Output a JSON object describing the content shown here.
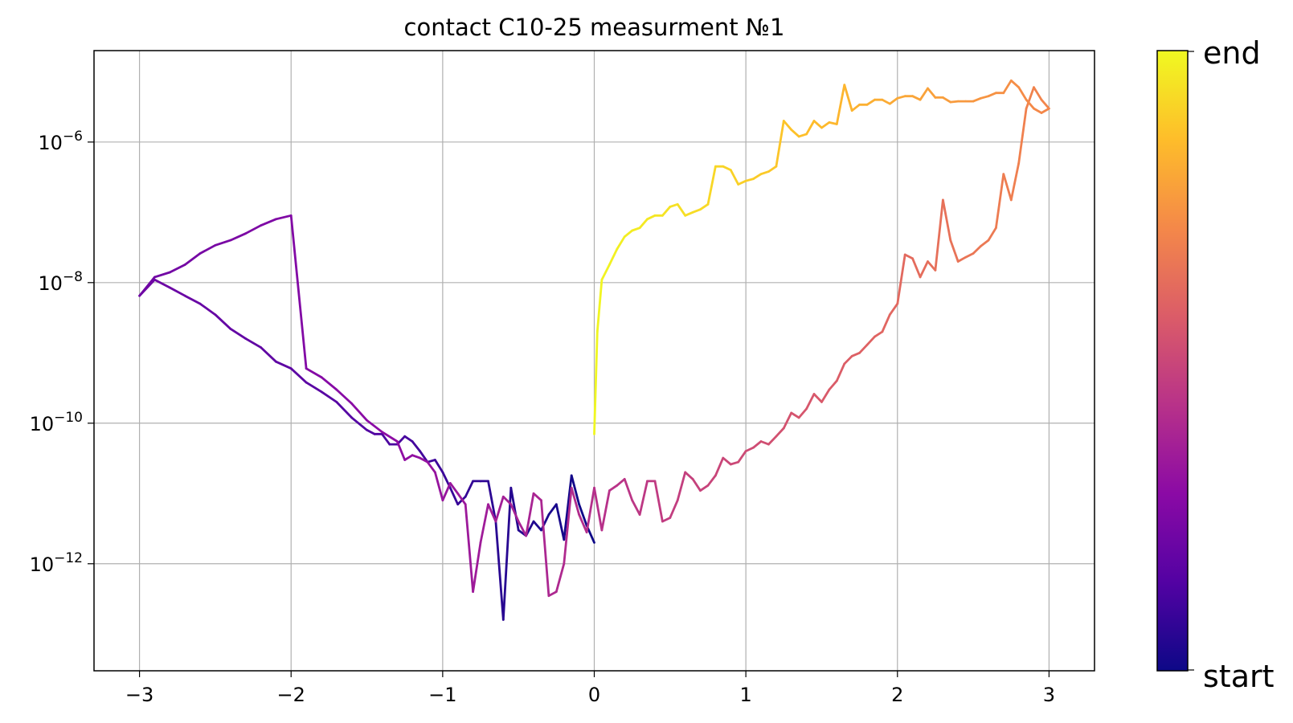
{
  "chart_data": {
    "type": "line",
    "title": "contact C10-25 measurment №1",
    "xlabel": "",
    "ylabel": "",
    "xlim": [
      -3.3,
      3.3
    ],
    "ylim": [
      3e-14,
      2e-05
    ],
    "y_scale": "log",
    "grid": true,
    "x_ticks": [
      -3,
      -2,
      -1,
      0,
      1,
      2,
      3
    ],
    "x_tick_labels": [
      "−3",
      "−2",
      "−1",
      "0",
      "1",
      "2",
      "3"
    ],
    "y_ticks": [
      {
        "value": 1e-12,
        "base": "10",
        "exp": "−12"
      },
      {
        "value": 1e-10,
        "base": "10",
        "exp": "−10"
      },
      {
        "value": 1e-08,
        "base": "10",
        "exp": "−8"
      },
      {
        "value": 1e-06,
        "base": "10",
        "exp": "−6"
      }
    ],
    "colormap": "plasma",
    "colorbar": {
      "start_label": "start",
      "end_label": "end"
    },
    "colormap_stops": [
      "#0d0887",
      "#5302a3",
      "#8b0aa5",
      "#b83289",
      "#db5c68",
      "#f48849",
      "#febd2a",
      "#f0f921"
    ],
    "series": [
      {
        "values": [
          [
            0,
            2e-12
          ],
          [
            -0.05,
            3.5e-12
          ],
          [
            -0.1,
            7e-12
          ],
          [
            -0.15,
            1.8e-11
          ],
          [
            -0.2,
            2.2e-12
          ],
          [
            -0.25,
            7e-12
          ],
          [
            -0.3,
            5e-12
          ],
          [
            -0.35,
            3e-12
          ],
          [
            -0.4,
            4e-12
          ],
          [
            -0.45,
            2.5e-12
          ],
          [
            -0.5,
            3e-12
          ],
          [
            -0.55,
            1.2e-11
          ],
          [
            -0.6,
            1.6e-13
          ],
          [
            -0.65,
            4e-12
          ],
          [
            -0.7,
            1.5e-11
          ],
          [
            -0.75,
            1.5e-11
          ],
          [
            -0.8,
            1.5e-11
          ],
          [
            -0.85,
            9e-12
          ],
          [
            -0.9,
            7e-12
          ],
          [
            -0.95,
            1.2e-11
          ],
          [
            -1.0,
            2e-11
          ],
          [
            -1.05,
            3e-11
          ],
          [
            -1.1,
            2.8e-11
          ],
          [
            -1.15,
            4e-11
          ],
          [
            -1.2,
            5.5e-11
          ],
          [
            -1.25,
            6.5e-11
          ],
          [
            -1.3,
            5e-11
          ],
          [
            -1.35,
            5e-11
          ],
          [
            -1.4,
            7e-11
          ],
          [
            -1.45,
            7e-11
          ],
          [
            -1.5,
            8e-11
          ],
          [
            -1.6,
            1.2e-10
          ],
          [
            -1.7,
            2e-10
          ],
          [
            -1.8,
            2.8e-10
          ],
          [
            -1.9,
            3.8e-10
          ],
          [
            -2.0,
            6e-10
          ],
          [
            -2.1,
            7.5e-10
          ],
          [
            -2.2,
            1.2e-09
          ],
          [
            -2.3,
            1.6e-09
          ],
          [
            -2.4,
            2.2e-09
          ],
          [
            -2.5,
            3.5e-09
          ],
          [
            -2.6,
            5e-09
          ],
          [
            -2.7,
            6.5e-09
          ],
          [
            -2.8,
            8.5e-09
          ],
          [
            -2.9,
            1.1e-08
          ],
          [
            -3.0,
            6.5e-09
          ],
          [
            -2.9,
            1.2e-08
          ],
          [
            -2.8,
            1.4e-08
          ],
          [
            -2.7,
            1.8e-08
          ],
          [
            -2.6,
            2.6e-08
          ],
          [
            -2.5,
            3.4e-08
          ],
          [
            -2.4,
            4e-08
          ],
          [
            -2.3,
            5e-08
          ],
          [
            -2.2,
            6.5e-08
          ],
          [
            -2.1,
            8e-08
          ],
          [
            -2.0,
            9e-08
          ],
          [
            -1.9,
            6e-10
          ],
          [
            -1.8,
            4.5e-10
          ],
          [
            -1.7,
            3e-10
          ],
          [
            -1.6,
            1.9e-10
          ],
          [
            -1.5,
            1.1e-10
          ],
          [
            -1.4,
            7.5e-11
          ],
          [
            -1.3,
            5.5e-11
          ],
          [
            -1.25,
            3e-11
          ],
          [
            -1.2,
            3.5e-11
          ],
          [
            -1.15,
            3.2e-11
          ],
          [
            -1.1,
            2.8e-11
          ],
          [
            -1.05,
            2e-11
          ],
          [
            -1.0,
            8e-12
          ],
          [
            -0.95,
            1.4e-11
          ],
          [
            -0.9,
            1e-11
          ],
          [
            -0.85,
            7e-12
          ],
          [
            -0.8,
            4e-13
          ],
          [
            -0.75,
            2e-12
          ],
          [
            -0.7,
            7e-12
          ],
          [
            -0.65,
            4e-12
          ],
          [
            -0.6,
            9e-12
          ],
          [
            -0.55,
            7e-12
          ],
          [
            -0.5,
            4e-12
          ],
          [
            -0.45,
            2.5e-12
          ],
          [
            -0.4,
            1e-11
          ],
          [
            -0.35,
            8e-12
          ],
          [
            -0.3,
            3.5e-13
          ],
          [
            -0.25,
            4e-13
          ],
          [
            -0.2,
            1e-12
          ],
          [
            -0.15,
            1.2e-11
          ],
          [
            -0.1,
            5e-12
          ],
          [
            -0.05,
            2.8e-12
          ],
          [
            0,
            1.2e-11
          ],
          [
            0.05,
            3e-12
          ],
          [
            0.1,
            1.1e-11
          ],
          [
            0.15,
            1.3e-11
          ],
          [
            0.2,
            1.6e-11
          ],
          [
            0.25,
            8e-12
          ],
          [
            0.3,
            5e-12
          ],
          [
            0.35,
            1.5e-11
          ],
          [
            0.4,
            1.5e-11
          ],
          [
            0.45,
            4e-12
          ],
          [
            0.5,
            4.5e-12
          ],
          [
            0.55,
            8e-12
          ],
          [
            0.6,
            2e-11
          ],
          [
            0.65,
            1.6e-11
          ],
          [
            0.7,
            1.1e-11
          ],
          [
            0.75,
            1.3e-11
          ],
          [
            0.8,
            1.8e-11
          ],
          [
            0.85,
            3.2e-11
          ],
          [
            0.9,
            2.6e-11
          ],
          [
            0.95,
            2.8e-11
          ],
          [
            1.0,
            4e-11
          ],
          [
            1.05,
            4.5e-11
          ],
          [
            1.1,
            5.5e-11
          ],
          [
            1.15,
            5e-11
          ],
          [
            1.2,
            6.5e-11
          ],
          [
            1.25,
            8.5e-11
          ],
          [
            1.3,
            1.4e-10
          ],
          [
            1.35,
            1.2e-10
          ],
          [
            1.4,
            1.6e-10
          ],
          [
            1.45,
            2.6e-10
          ],
          [
            1.5,
            2e-10
          ],
          [
            1.55,
            3e-10
          ],
          [
            1.6,
            4e-10
          ],
          [
            1.65,
            7e-10
          ],
          [
            1.7,
            9e-10
          ],
          [
            1.75,
            1e-09
          ],
          [
            1.8,
            1.3e-09
          ],
          [
            1.85,
            1.7e-09
          ],
          [
            1.9,
            2e-09
          ],
          [
            1.95,
            3.5e-09
          ],
          [
            2.0,
            5e-09
          ],
          [
            2.05,
            2.5e-08
          ],
          [
            2.1,
            2.2e-08
          ],
          [
            2.15,
            1.2e-08
          ],
          [
            2.2,
            2e-08
          ],
          [
            2.25,
            1.5e-08
          ],
          [
            2.3,
            1.5e-07
          ],
          [
            2.35,
            4e-08
          ],
          [
            2.4,
            2e-08
          ],
          [
            2.45,
            2.3e-08
          ],
          [
            2.5,
            2.6e-08
          ],
          [
            2.55,
            3.3e-08
          ],
          [
            2.6,
            4e-08
          ],
          [
            2.65,
            6e-08
          ],
          [
            2.7,
            3.5e-07
          ],
          [
            2.75,
            1.5e-07
          ],
          [
            2.8,
            5e-07
          ],
          [
            2.85,
            3e-06
          ],
          [
            2.9,
            6e-06
          ],
          [
            2.95,
            4e-06
          ],
          [
            3.0,
            3e-06
          ],
          [
            2.95,
            2.6e-06
          ],
          [
            2.9,
            3e-06
          ],
          [
            2.85,
            4e-06
          ],
          [
            2.8,
            6e-06
          ],
          [
            2.75,
            7.5e-06
          ],
          [
            2.7,
            5e-06
          ],
          [
            2.65,
            5e-06
          ],
          [
            2.6,
            4.5e-06
          ],
          [
            2.55,
            4.2e-06
          ],
          [
            2.5,
            3.8e-06
          ],
          [
            2.45,
            3.8e-06
          ],
          [
            2.4,
            3.8e-06
          ],
          [
            2.35,
            3.7e-06
          ],
          [
            2.3,
            4.3e-06
          ],
          [
            2.25,
            4.3e-06
          ],
          [
            2.2,
            5.8e-06
          ],
          [
            2.15,
            4e-06
          ],
          [
            2.1,
            4.5e-06
          ],
          [
            2.05,
            4.5e-06
          ],
          [
            2.0,
            4.2e-06
          ],
          [
            1.95,
            3.5e-06
          ],
          [
            1.9,
            4e-06
          ],
          [
            1.85,
            4e-06
          ],
          [
            1.8,
            3.4e-06
          ],
          [
            1.75,
            3.4e-06
          ],
          [
            1.7,
            2.8e-06
          ],
          [
            1.65,
            6.5e-06
          ],
          [
            1.6,
            1.8e-06
          ],
          [
            1.55,
            1.9e-06
          ],
          [
            1.5,
            1.6e-06
          ],
          [
            1.45,
            2e-06
          ],
          [
            1.4,
            1.3e-06
          ],
          [
            1.35,
            1.2e-06
          ],
          [
            1.3,
            1.5e-06
          ],
          [
            1.25,
            2e-06
          ],
          [
            1.2,
            4.5e-07
          ],
          [
            1.15,
            3.8e-07
          ],
          [
            1.1,
            3.5e-07
          ],
          [
            1.05,
            3e-07
          ],
          [
            1.0,
            2.8e-07
          ],
          [
            0.95,
            2.5e-07
          ],
          [
            0.9,
            4e-07
          ],
          [
            0.85,
            4.5e-07
          ],
          [
            0.8,
            4.5e-07
          ],
          [
            0.75,
            1.3e-07
          ],
          [
            0.7,
            1.1e-07
          ],
          [
            0.65,
            1e-07
          ],
          [
            0.6,
            9e-08
          ],
          [
            0.55,
            1.3e-07
          ],
          [
            0.5,
            1.2e-07
          ],
          [
            0.45,
            9e-08
          ],
          [
            0.4,
            9e-08
          ],
          [
            0.35,
            8e-08
          ],
          [
            0.3,
            6e-08
          ],
          [
            0.25,
            5.5e-08
          ],
          [
            0.2,
            4.5e-08
          ],
          [
            0.15,
            3e-08
          ],
          [
            0.1,
            1.8e-08
          ],
          [
            0.05,
            1.1e-08
          ],
          [
            0.02,
            2e-09
          ],
          [
            0,
            7e-11
          ]
        ]
      }
    ]
  }
}
